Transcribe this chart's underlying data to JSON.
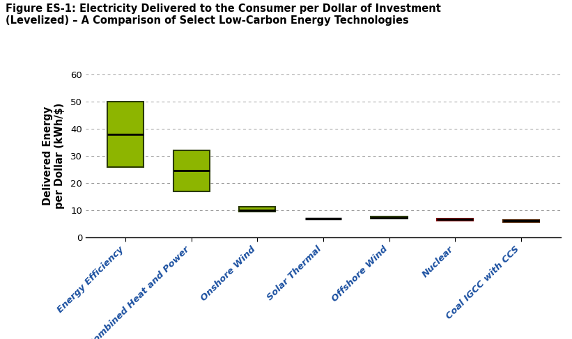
{
  "title_line1": "Figure ES-1: Electricity Delivered to the Consumer per Dollar of Investment",
  "title_line2": "(Levelized) – A Comparison of Select Low-Carbon Energy Technologies",
  "ylabel": "Delivered Energy\nper Dollar (kWh/$)",
  "categories": [
    "Energy Efficiency",
    "Combined Heat and Power",
    "Onshore Wind",
    "Solar Thermal",
    "Offshore Wind",
    "Nuclear",
    "Coal IGCC with CCS"
  ],
  "boxes": [
    {
      "q1": 26,
      "median": 38,
      "q3": 50,
      "color": "#8db500",
      "edge_color": "#2a3a00",
      "median_color": "#000000",
      "line_only": false
    },
    {
      "q1": 17,
      "median": 24.5,
      "q3": 32,
      "color": "#8db500",
      "edge_color": "#2a3a00",
      "median_color": "#000000",
      "line_only": false
    },
    {
      "q1": 9.5,
      "median": 10.0,
      "q3": 11.2,
      "color": "#8db500",
      "edge_color": "#2a3a00",
      "median_color": "#000000",
      "line_only": false
    },
    {
      "q1": 7.0,
      "median": 7.0,
      "q3": 7.0,
      "color": "#000000",
      "edge_color": "#000000",
      "median_color": "#000000",
      "line_only": true
    },
    {
      "q1": 6.8,
      "median": 7.2,
      "q3": 7.8,
      "color": "#8db500",
      "edge_color": "#2a3a00",
      "median_color": "#000000",
      "line_only": false
    },
    {
      "q1": 6.2,
      "median": 6.6,
      "q3": 7.0,
      "color": "#cc1111",
      "edge_color": "#880000",
      "median_color": "#000000",
      "line_only": false
    },
    {
      "q1": 5.7,
      "median": 6.1,
      "q3": 6.5,
      "color": "#8b3a00",
      "edge_color": "#4a1e00",
      "median_color": "#000000",
      "line_only": false
    }
  ],
  "ylim": [
    0,
    60
  ],
  "yticks": [
    0,
    10,
    20,
    30,
    40,
    50,
    60
  ],
  "background_color": "#ffffff",
  "grid_color": "#999999",
  "box_width": 0.55,
  "title_fontsize": 10.5,
  "ylabel_fontsize": 10.5,
  "tick_fontsize": 9.5,
  "xlabel_color": "#1a4fa0",
  "xlabel_fontsize": 9.5
}
